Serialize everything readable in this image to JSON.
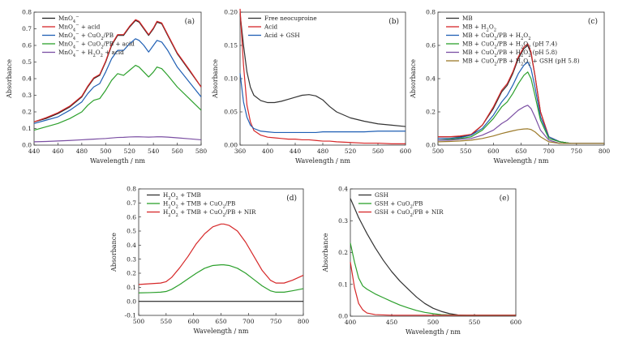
{
  "chart_data": [
    {
      "type": "line",
      "panel_label": "(a)",
      "xlabel": "Wavelength / nm",
      "ylabel": "Absorbance",
      "xlim": [
        440,
        580
      ],
      "ylim": [
        0,
        0.8
      ],
      "xticks": [
        440,
        460,
        480,
        500,
        520,
        540,
        560,
        580
      ],
      "yticks": [
        0,
        0.1,
        0.2,
        0.3,
        0.4,
        0.5,
        0.6,
        0.7,
        0.8
      ],
      "ytick_labels": [
        "0.0",
        "0.1",
        "0.2",
        "0.3",
        "0.4",
        "0.5",
        "0.6",
        "0.7",
        "0.8"
      ],
      "legend_position": "top-left",
      "x": [
        440,
        450,
        460,
        470,
        480,
        485,
        490,
        495,
        500,
        505,
        510,
        515,
        520,
        525,
        528,
        532,
        536,
        540,
        543,
        547,
        552,
        560,
        570,
        580
      ],
      "series": [
        {
          "name": "MnO4⁻",
          "color": "#222222",
          "values": [
            0.14,
            0.16,
            0.19,
            0.23,
            0.29,
            0.35,
            0.4,
            0.42,
            0.5,
            0.6,
            0.66,
            0.66,
            0.71,
            0.75,
            0.74,
            0.7,
            0.66,
            0.7,
            0.74,
            0.73,
            0.66,
            0.55,
            0.45,
            0.35
          ]
        },
        {
          "name": "MnO4⁻ + acid",
          "color": "#d62728",
          "values": [
            0.14,
            0.165,
            0.195,
            0.235,
            0.295,
            0.355,
            0.405,
            0.425,
            0.505,
            0.605,
            0.665,
            0.665,
            0.715,
            0.755,
            0.745,
            0.705,
            0.665,
            0.705,
            0.745,
            0.735,
            0.665,
            0.555,
            0.455,
            0.35
          ]
        },
        {
          "name": "MnO4⁻ + CuO2/PB",
          "color": "#1f5fb4",
          "values": [
            0.13,
            0.15,
            0.17,
            0.21,
            0.26,
            0.31,
            0.35,
            0.37,
            0.44,
            0.52,
            0.57,
            0.57,
            0.61,
            0.64,
            0.63,
            0.6,
            0.56,
            0.6,
            0.63,
            0.62,
            0.57,
            0.47,
            0.38,
            0.29
          ]
        },
        {
          "name": "MnO4⁻ + CuO2/PB + acid",
          "color": "#2ca02c",
          "values": [
            0.09,
            0.11,
            0.13,
            0.16,
            0.2,
            0.24,
            0.27,
            0.28,
            0.33,
            0.39,
            0.43,
            0.42,
            0.45,
            0.48,
            0.47,
            0.44,
            0.41,
            0.44,
            0.47,
            0.46,
            0.42,
            0.35,
            0.28,
            0.21
          ]
        },
        {
          "name": "MnO4⁻ + H2O2 + acid",
          "color": "#7b4fa3",
          "values": [
            0.02,
            0.022,
            0.025,
            0.028,
            0.032,
            0.034,
            0.036,
            0.038,
            0.04,
            0.043,
            0.046,
            0.047,
            0.049,
            0.05,
            0.05,
            0.049,
            0.048,
            0.049,
            0.05,
            0.05,
            0.048,
            0.044,
            0.038,
            0.032
          ]
        }
      ]
    },
    {
      "type": "line",
      "panel_label": "(b)",
      "xlabel": "Wavelength / nm",
      "ylabel": "Absorbance",
      "xlim": [
        360,
        600
      ],
      "ylim": [
        0,
        0.2
      ],
      "xticks": [
        360,
        400,
        440,
        480,
        520,
        560,
        600
      ],
      "yticks": [
        0,
        0.05,
        0.1,
        0.15,
        0.2
      ],
      "ytick_labels": [
        "0.00",
        "0.05",
        "0.10",
        "0.15",
        "0.20"
      ],
      "legend_position": "top-right",
      "x": [
        360,
        365,
        370,
        375,
        380,
        390,
        400,
        410,
        420,
        430,
        440,
        450,
        460,
        470,
        480,
        490,
        500,
        520,
        540,
        560,
        580,
        600
      ],
      "series": [
        {
          "name": "Free neocuproine",
          "color": "#333333",
          "values": [
            0.198,
            0.15,
            0.11,
            0.087,
            0.075,
            0.067,
            0.064,
            0.064,
            0.066,
            0.069,
            0.072,
            0.075,
            0.076,
            0.074,
            0.068,
            0.058,
            0.05,
            0.041,
            0.036,
            0.032,
            0.03,
            0.028
          ]
        },
        {
          "name": "Acid",
          "color": "#d62728",
          "values": [
            0.205,
            0.12,
            0.06,
            0.035,
            0.022,
            0.015,
            0.012,
            0.011,
            0.01,
            0.009,
            0.009,
            0.008,
            0.008,
            0.007,
            0.006,
            0.006,
            0.005,
            0.004,
            0.003,
            0.003,
            0.002,
            0.002
          ]
        },
        {
          "name": "Acid + GSH",
          "color": "#1f5fb4",
          "values": [
            0.108,
            0.065,
            0.042,
            0.03,
            0.025,
            0.021,
            0.02,
            0.019,
            0.019,
            0.019,
            0.019,
            0.019,
            0.019,
            0.019,
            0.02,
            0.02,
            0.02,
            0.02,
            0.02,
            0.021,
            0.021,
            0.021
          ]
        }
      ]
    },
    {
      "type": "line",
      "panel_label": "(c)",
      "xlabel": "Wavelength / nm",
      "ylabel": "Absorbance",
      "xlim": [
        500,
        800
      ],
      "ylim": [
        0,
        0.8
      ],
      "xticks": [
        500,
        550,
        600,
        650,
        700,
        750,
        800
      ],
      "yticks": [
        0,
        0.2,
        0.4,
        0.6,
        0.8
      ],
      "ytick_labels": [
        "0.0",
        "0.2",
        "0.4",
        "0.6",
        "0.8"
      ],
      "legend_position": "top-right",
      "x": [
        500,
        520,
        540,
        560,
        580,
        600,
        615,
        625,
        635,
        645,
        655,
        662,
        668,
        675,
        685,
        700,
        720,
        740,
        760,
        780,
        800
      ],
      "series": [
        {
          "name": "MB",
          "color": "#333333",
          "values": [
            0.05,
            0.05,
            0.05,
            0.06,
            0.12,
            0.22,
            0.32,
            0.36,
            0.43,
            0.52,
            0.58,
            0.6,
            0.55,
            0.42,
            0.2,
            0.05,
            0.02,
            0.01,
            0.01,
            0.01,
            0.01
          ]
        },
        {
          "name": "MB + H2O2",
          "color": "#d62728",
          "values": [
            0.05,
            0.05,
            0.055,
            0.065,
            0.12,
            0.23,
            0.33,
            0.37,
            0.44,
            0.53,
            0.59,
            0.61,
            0.56,
            0.42,
            0.2,
            0.05,
            0.02,
            0.01,
            0.01,
            0.01,
            0.01
          ]
        },
        {
          "name": "MB + CuO2/PB + H2O2",
          "color": "#1f5fb4",
          "values": [
            0.04,
            0.04,
            0.045,
            0.06,
            0.1,
            0.18,
            0.26,
            0.3,
            0.36,
            0.43,
            0.48,
            0.5,
            0.46,
            0.35,
            0.17,
            0.05,
            0.02,
            0.01,
            0.01,
            0.01,
            0.01
          ]
        },
        {
          "name": "MB + CuO2/PB + H2O2 (pH 7.4)",
          "color": "#2ca02c",
          "values": [
            0.03,
            0.035,
            0.04,
            0.05,
            0.09,
            0.16,
            0.23,
            0.26,
            0.31,
            0.37,
            0.42,
            0.44,
            0.4,
            0.3,
            0.15,
            0.04,
            0.02,
            0.01,
            0.01,
            0.01,
            0.01
          ]
        },
        {
          "name": "MB + CuO2/PB + H2O2 (pH 5.8)",
          "color": "#7b4fa3",
          "values": [
            0.03,
            0.03,
            0.035,
            0.04,
            0.06,
            0.09,
            0.13,
            0.15,
            0.18,
            0.21,
            0.23,
            0.24,
            0.22,
            0.17,
            0.09,
            0.03,
            0.01,
            0.01,
            0.01,
            0.01,
            0.01
          ]
        },
        {
          "name": "MB + CuO2/PB + H2O2 + GSH (pH 5.8)",
          "color": "#9c7a2a",
          "values": [
            0.02,
            0.022,
            0.025,
            0.03,
            0.04,
            0.055,
            0.07,
            0.078,
            0.086,
            0.093,
            0.097,
            0.098,
            0.094,
            0.08,
            0.05,
            0.02,
            0.01,
            0.01,
            0.01,
            0.01,
            0.01
          ]
        }
      ]
    },
    {
      "type": "line",
      "panel_label": "(d)",
      "xlabel": "Wavelength / nm",
      "ylabel": "Absorbance",
      "xlim": [
        500,
        800
      ],
      "ylim": [
        -0.1,
        0.8
      ],
      "xticks": [
        500,
        550,
        600,
        650,
        700,
        750,
        800
      ],
      "yticks": [
        -0.1,
        0,
        0.1,
        0.2,
        0.3,
        0.4,
        0.5,
        0.6,
        0.7,
        0.8
      ],
      "ytick_labels": [
        "-0.1",
        "0.0",
        "0.1",
        "0.2",
        "0.3",
        "0.4",
        "0.5",
        "0.6",
        "0.7",
        "0.8"
      ],
      "legend_position": "top-left",
      "x": [
        500,
        520,
        540,
        550,
        560,
        575,
        590,
        605,
        620,
        635,
        650,
        655,
        665,
        680,
        695,
        710,
        725,
        740,
        750,
        765,
        780,
        800
      ],
      "series": [
        {
          "name": "H2O2 + TMB",
          "color": "#333333",
          "values": [
            0.0,
            0.0,
            0.0,
            0.0,
            0.0,
            0.0,
            0.0,
            0.0,
            0.0,
            0.0,
            0.0,
            0.0,
            0.0,
            0.0,
            0.0,
            0.0,
            0.0,
            0.0,
            0.0,
            0.0,
            0.0,
            0.0
          ]
        },
        {
          "name": "H2O2 + TMB + CuO2/PB",
          "color": "#2ca02c",
          "values": [
            0.06,
            0.062,
            0.065,
            0.07,
            0.085,
            0.12,
            0.16,
            0.2,
            0.235,
            0.255,
            0.26,
            0.26,
            0.255,
            0.235,
            0.2,
            0.155,
            0.11,
            0.075,
            0.065,
            0.065,
            0.075,
            0.09
          ]
        },
        {
          "name": "H2O2 + TMB + CuO2/PB + NIR",
          "color": "#d62728",
          "values": [
            0.12,
            0.125,
            0.13,
            0.14,
            0.17,
            0.24,
            0.32,
            0.41,
            0.48,
            0.53,
            0.55,
            0.55,
            0.54,
            0.5,
            0.42,
            0.32,
            0.22,
            0.15,
            0.13,
            0.13,
            0.15,
            0.185
          ]
        }
      ]
    },
    {
      "type": "line",
      "panel_label": "(e)",
      "xlabel": "Wavelength / nm",
      "ylabel": "Absorbance",
      "xlim": [
        400,
        600
      ],
      "ylim": [
        0,
        0.4
      ],
      "xticks": [
        400,
        450,
        500,
        550,
        600
      ],
      "yticks": [
        0,
        0.1,
        0.2,
        0.3,
        0.4
      ],
      "ytick_labels": [
        "0.0",
        "0.1",
        "0.2",
        "0.3",
        "0.4"
      ],
      "legend_position": "top-right",
      "x": [
        400,
        405,
        410,
        415,
        420,
        430,
        440,
        450,
        460,
        470,
        480,
        490,
        500,
        510,
        520,
        530,
        540,
        550,
        560,
        580,
        600
      ],
      "series": [
        {
          "name": "GSH",
          "color": "#333333",
          "values": [
            0.37,
            0.34,
            0.31,
            0.285,
            0.26,
            0.215,
            0.175,
            0.14,
            0.11,
            0.085,
            0.06,
            0.04,
            0.025,
            0.015,
            0.008,
            0.004,
            0.003,
            0.003,
            0.003,
            0.003,
            0.003
          ]
        },
        {
          "name": "GSH + CuO2/PB",
          "color": "#2ca02c",
          "values": [
            0.23,
            0.17,
            0.12,
            0.095,
            0.085,
            0.07,
            0.058,
            0.046,
            0.035,
            0.026,
            0.018,
            0.012,
            0.008,
            0.005,
            0.004,
            0.003,
            0.003,
            0.003,
            0.003,
            0.003,
            0.003
          ]
        },
        {
          "name": "GSH + CuO2/PB + NIR",
          "color": "#d62728",
          "values": [
            0.17,
            0.09,
            0.04,
            0.02,
            0.01,
            0.005,
            0.004,
            0.003,
            0.003,
            0.003,
            0.003,
            0.003,
            0.003,
            0.003,
            0.003,
            0.003,
            0.003,
            0.003,
            0.003,
            0.003,
            0.003
          ]
        }
      ]
    }
  ]
}
